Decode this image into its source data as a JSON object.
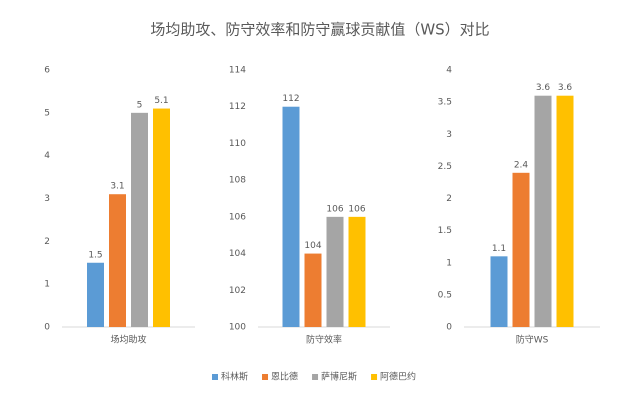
{
  "title": "场均助攻、防守效率和防守赢球贡献值（WS）对比",
  "legend": {
    "names": [
      "科林斯",
      "恩比德",
      "萨博尼斯",
      "阿德巴约"
    ],
    "colors": [
      "#5b9bd5",
      "#ed7d31",
      "#a5a5a5",
      "#ffc000"
    ]
  },
  "chart_data": [
    {
      "type": "bar",
      "xlabel": "场均助攻",
      "values": [
        1.5,
        3.1,
        5,
        5.1
      ],
      "ylim": [
        0,
        6
      ],
      "yticks": [
        0,
        1,
        2,
        3,
        4,
        5,
        6
      ]
    },
    {
      "type": "bar",
      "xlabel": "防守效率",
      "values": [
        112,
        104,
        106,
        106
      ],
      "ylim": [
        100,
        114
      ],
      "yticks": [
        100,
        102,
        104,
        106,
        108,
        110,
        112,
        114
      ]
    },
    {
      "type": "bar",
      "xlabel": "防守WS",
      "values": [
        1.1,
        2.4,
        3.6,
        3.6
      ],
      "ylim": [
        0,
        4
      ],
      "yticks": [
        0,
        0.5,
        1,
        1.5,
        2,
        2.5,
        3,
        3.5,
        4
      ]
    }
  ]
}
